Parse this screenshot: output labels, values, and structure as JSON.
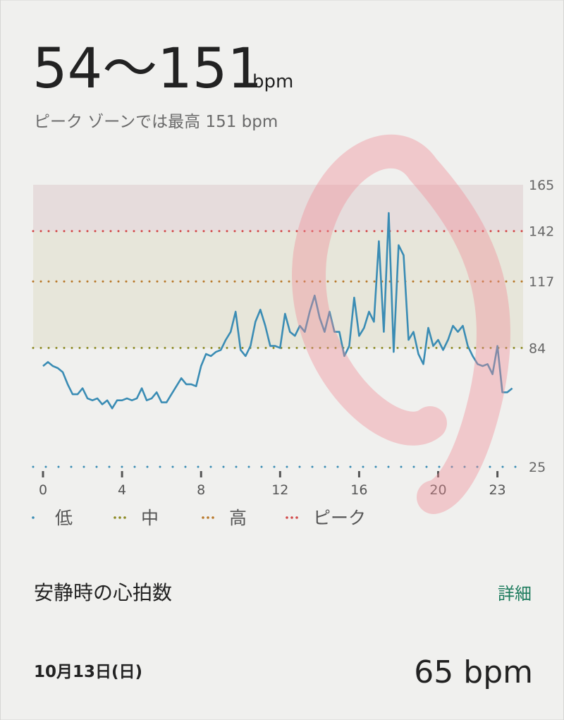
{
  "header": {
    "range": "54〜151",
    "unit": "bpm",
    "subtitle": "ピーク ゾーンでは最高 151 bpm"
  },
  "chart_data": {
    "type": "line",
    "x": [
      0,
      0.25,
      0.5,
      0.75,
      1,
      1.25,
      1.5,
      1.75,
      2,
      2.25,
      2.5,
      2.75,
      3,
      3.25,
      3.5,
      3.75,
      4,
      4.25,
      4.5,
      4.75,
      5,
      5.25,
      5.5,
      5.75,
      6,
      6.25,
      6.5,
      6.75,
      7,
      7.25,
      7.5,
      7.75,
      8,
      8.25,
      8.5,
      8.75,
      9,
      9.25,
      9.5,
      9.75,
      10,
      10.25,
      10.5,
      10.75,
      11,
      11.25,
      11.5,
      11.75,
      12,
      12.25,
      12.5,
      12.75,
      13,
      13.25,
      13.5,
      13.75,
      14,
      14.25,
      14.5,
      14.75,
      15,
      15.25,
      15.5,
      15.75,
      16,
      16.25,
      16.5,
      16.75,
      17,
      17.25,
      17.5,
      17.75,
      18,
      18.25,
      18.5,
      18.75,
      19,
      19.25,
      19.5,
      19.75,
      20,
      20.25,
      20.5,
      20.75,
      21,
      21.25,
      21.5,
      21.75,
      22,
      22.25,
      22.5,
      22.75,
      23,
      23.25,
      23.5,
      23.75
    ],
    "values": [
      75,
      77,
      75,
      74,
      72,
      66,
      61,
      61,
      64,
      59,
      58,
      59,
      56,
      58,
      54,
      58,
      58,
      59,
      58,
      59,
      64,
      58,
      59,
      62,
      57,
      57,
      61,
      65,
      69,
      66,
      66,
      65,
      75,
      81,
      80,
      82,
      83,
      88,
      92,
      102,
      83,
      80,
      85,
      97,
      103,
      95,
      85,
      85,
      84,
      101,
      92,
      90,
      95,
      92,
      102,
      110,
      99,
      92,
      102,
      92,
      92,
      80,
      85,
      109,
      90,
      94,
      102,
      97,
      137,
      92,
      151,
      82,
      135,
      130,
      88,
      92,
      81,
      76,
      94,
      85,
      88,
      83,
      88,
      95,
      92,
      95,
      85,
      80,
      76,
      75,
      76,
      71,
      85,
      62,
      62,
      64
    ],
    "zones": [
      {
        "name": "低",
        "color": "#3a8cb4",
        "value": 25
      },
      {
        "name": "中",
        "color": "#8c8a22",
        "value": 84,
        "band_color": "#e7e6da"
      },
      {
        "name": "高",
        "color": "#b8782a",
        "value": 117,
        "band_color": "#e7e6da"
      },
      {
        "name": "ピーク",
        "color": "#d24a4a",
        "value": 142,
        "band_color": "#e6dcdc"
      }
    ],
    "xlim": [
      -0.5,
      24.3
    ],
    "ylim": [
      25,
      165
    ],
    "xticks": [
      0,
      4,
      8,
      12,
      16,
      20,
      23
    ],
    "yticks": [
      25,
      84,
      117,
      142,
      165
    ]
  },
  "resting": {
    "title": "安静時の心拍数",
    "link": "詳細",
    "date": "10月13日(日)",
    "value": 65,
    "unit": "bpm"
  }
}
